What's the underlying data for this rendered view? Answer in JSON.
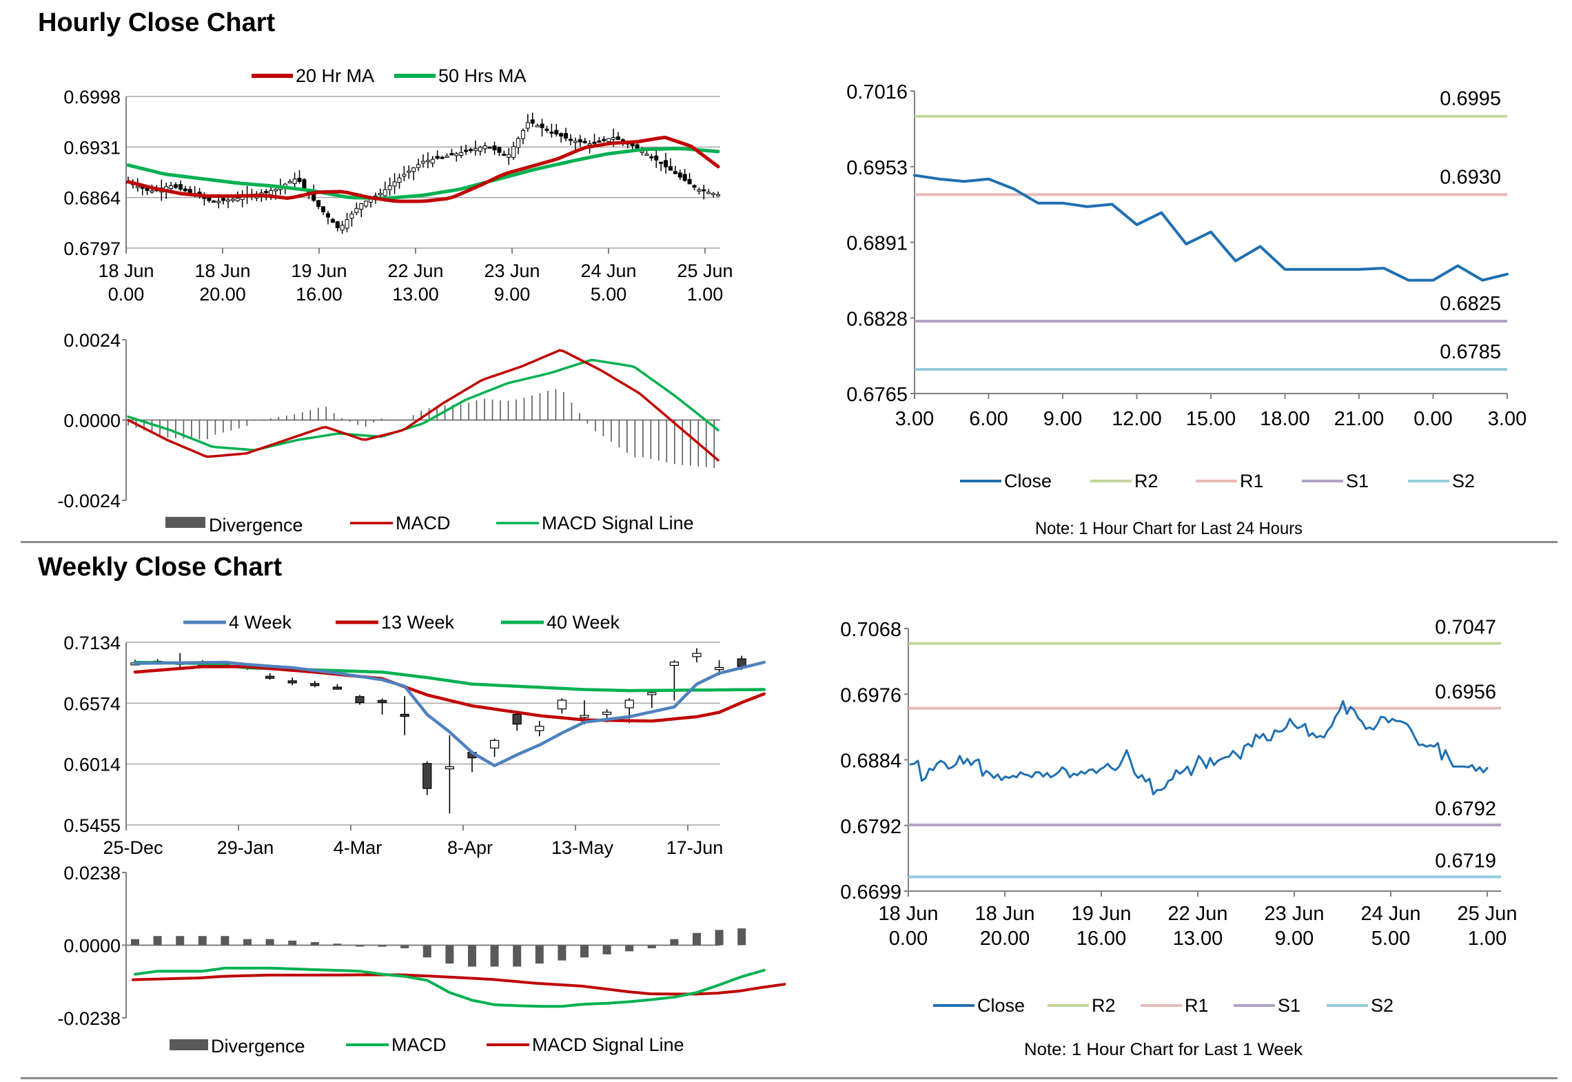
{
  "sections": {
    "hourly_title": "Hourly Close Chart",
    "weekly_title": "Weekly Close Chart"
  },
  "colors": {
    "ma20": "#c00000",
    "ma50": "#00b050",
    "ma4": "#4f81bd",
    "ma13": "#c00000",
    "ma40": "#00b050",
    "close": "#1f6fb2",
    "r2": "#c3d69b",
    "r1": "#e6b9b8",
    "s1": "#b3a2c7",
    "s2": "#93cddd",
    "divergence": "#595959",
    "grid": "#a6a6a6"
  },
  "chart_data": [
    {
      "id": "hourly_candles",
      "type": "candlestick",
      "legend": [
        "20 Hr MA",
        "50 Hrs MA"
      ],
      "y_ticks": [
        "0.6998",
        "0.6931",
        "0.6864",
        "0.6797"
      ],
      "ylim": [
        0.6797,
        0.6998
      ],
      "x_ticks": [
        [
          "18 Jun",
          "0.00"
        ],
        [
          "18 Jun",
          "20.00"
        ],
        [
          "19 Jun",
          "16.00"
        ],
        [
          "22 Jun",
          "13.00"
        ],
        [
          "23 Jun",
          "9.00"
        ],
        [
          "24 Jun",
          "5.00"
        ],
        [
          "25 Jun",
          "1.00"
        ]
      ],
      "close_anchors": [
        0.6885,
        0.6872,
        0.688,
        0.687,
        0.6858,
        0.6862,
        0.6868,
        0.6875,
        0.689,
        0.6853,
        0.6822,
        0.6855,
        0.687,
        0.6893,
        0.6912,
        0.6918,
        0.6925,
        0.6933,
        0.6918,
        0.6965,
        0.6952,
        0.694,
        0.6935,
        0.6944,
        0.6932,
        0.6915,
        0.6895,
        0.6875,
        0.6868
      ],
      "ma20_anchors": [
        0.6885,
        0.6876,
        0.6869,
        0.6866,
        0.6866,
        0.6867,
        0.6863,
        0.6871,
        0.6872,
        0.6864,
        0.6859,
        0.6859,
        0.6863,
        0.6878,
        0.6895,
        0.6905,
        0.6915,
        0.693,
        0.6936,
        0.6938,
        0.6944,
        0.6932,
        0.6905
      ],
      "ma50_anchors": [
        0.6907,
        0.6895,
        0.6889,
        0.6883,
        0.6879,
        0.6873,
        0.6864,
        0.6863,
        0.6867,
        0.6875,
        0.6888,
        0.6901,
        0.6912,
        0.6922,
        0.6928,
        0.6929,
        0.6925
      ],
      "macd": {
        "legend": [
          "Divergence",
          "MACD",
          "MACD Signal Line"
        ],
        "y_ticks": [
          "0.0024",
          "0.0000",
          "-0.0024"
        ],
        "ylim": [
          -0.0024,
          0.0024
        ],
        "macd_anchors": [
          0.0,
          -0.0006,
          -0.0011,
          -0.001,
          -0.0006,
          -0.0002,
          -0.0006,
          -0.0003,
          0.0005,
          0.0012,
          0.0016,
          0.0021,
          0.0015,
          0.0008,
          -0.0002,
          -0.0012
        ],
        "signal_anchors": [
          0.0001,
          -0.0003,
          -0.0008,
          -0.0009,
          -0.0006,
          -0.0004,
          -0.0005,
          -0.0001,
          0.0006,
          0.0011,
          0.0014,
          0.0018,
          0.0016,
          0.0007,
          -0.0003
        ]
      }
    },
    {
      "id": "hourly_levels",
      "type": "line",
      "y_ticks": [
        "0.7016",
        "0.6953",
        "0.6891",
        "0.6828",
        "0.6765"
      ],
      "ylim": [
        0.6765,
        0.7016
      ],
      "x_ticks": [
        "3.00",
        "6.00",
        "9.00",
        "12.00",
        "15.00",
        "18.00",
        "21.00",
        "0.00",
        "3.00"
      ],
      "close": [
        0.6946,
        0.6943,
        0.6941,
        0.6943,
        0.6935,
        0.6923,
        0.6923,
        0.692,
        0.6922,
        0.6905,
        0.6915,
        0.6889,
        0.6899,
        0.6875,
        0.6887,
        0.6868,
        0.6868,
        0.6868,
        0.6868,
        0.6869,
        0.6859,
        0.6859,
        0.6871,
        0.6859,
        0.6864
      ],
      "levels": {
        "R2": 0.6995,
        "R1": 0.693,
        "S1": 0.6825,
        "S2": 0.6785
      },
      "level_labels": {
        "R2": "0.6995",
        "R1": "0.6930",
        "S1": "0.6825",
        "S2": "0.6785"
      },
      "legend": [
        "Close",
        "R2",
        "R1",
        "S1",
        "S2"
      ],
      "note": "Note: 1 Hour Chart for Last 24 Hours"
    },
    {
      "id": "weekly_candles",
      "type": "candlestick",
      "legend": [
        "4 Week",
        "13 Week",
        "40 Week"
      ],
      "y_ticks": [
        "0.7134",
        "0.6574",
        "0.6014",
        "0.5455"
      ],
      "ylim": [
        0.5455,
        0.7134
      ],
      "x_ticks": [
        "25-Dec",
        "29-Jan",
        "4-Mar",
        "8-Apr",
        "13-May",
        "17-Jun"
      ],
      "candles": [
        [
          0.6945,
          0.6945,
          0.6975,
          0.6925
        ],
        [
          0.696,
          0.6942,
          0.698,
          0.693
        ],
        [
          0.695,
          0.695,
          0.7035,
          0.69
        ],
        [
          0.694,
          0.694,
          0.697,
          0.692
        ],
        [
          0.6932,
          0.6918,
          0.695,
          0.69
        ],
        [
          0.6918,
          0.6908,
          0.694,
          0.688
        ],
        [
          0.6822,
          0.6808,
          0.685,
          0.679
        ],
        [
          0.678,
          0.677,
          0.681,
          0.674
        ],
        [
          0.6755,
          0.6738,
          0.678,
          0.672
        ],
        [
          0.6722,
          0.6712,
          0.675,
          0.67
        ],
        [
          0.6635,
          0.658,
          0.665,
          0.656
        ],
        [
          0.66,
          0.659,
          0.6618,
          0.647
        ],
        [
          0.6472,
          0.6462,
          0.664,
          0.628
        ],
        [
          0.602,
          0.579,
          0.604,
          0.573
        ],
        [
          0.599,
          0.599,
          0.628,
          0.556
        ],
        [
          0.6122,
          0.6072,
          0.614,
          0.594
        ],
        [
          0.6162,
          0.6232,
          0.625,
          0.608
        ],
        [
          0.6472,
          0.6382,
          0.649,
          0.632
        ],
        [
          0.6322,
          0.6362,
          0.641,
          0.627
        ],
        [
          0.6522,
          0.6602,
          0.662,
          0.648
        ],
        [
          0.6462,
          0.6462,
          0.66,
          0.638
        ],
        [
          0.6472,
          0.6492,
          0.652,
          0.64
        ],
        [
          0.6532,
          0.6602,
          0.662,
          0.639
        ],
        [
          0.6672,
          0.6672,
          0.669,
          0.653
        ],
        [
          0.6922,
          0.6952,
          0.697,
          0.66
        ],
        [
          0.7002,
          0.7032,
          0.708,
          0.695
        ],
        [
          0.6902,
          0.6902,
          0.697,
          0.683
        ],
        [
          0.6982,
          0.6912,
          0.701,
          0.688
        ]
      ],
      "ma4_anchors": [
        [
          0,
          0.694
        ],
        [
          4,
          0.695
        ],
        [
          5,
          0.693
        ],
        [
          7,
          0.69
        ],
        [
          9,
          0.685
        ],
        [
          11,
          0.679
        ],
        [
          12,
          0.673
        ],
        [
          13,
          0.647
        ],
        [
          14,
          0.631
        ],
        [
          15,
          0.612
        ],
        [
          16,
          0.6
        ],
        [
          17,
          0.61
        ],
        [
          18,
          0.619
        ],
        [
          19,
          0.63
        ],
        [
          20,
          0.64
        ],
        [
          22,
          0.645
        ],
        [
          24,
          0.654
        ],
        [
          25,
          0.675
        ],
        [
          26,
          0.685
        ],
        [
          28,
          0.695
        ]
      ],
      "ma13_anchors": [
        [
          0,
          0.686
        ],
        [
          3,
          0.691
        ],
        [
          5,
          0.691
        ],
        [
          8,
          0.686
        ],
        [
          11,
          0.68
        ],
        [
          13,
          0.665
        ],
        [
          15,
          0.655
        ],
        [
          18,
          0.646
        ],
        [
          20,
          0.642
        ],
        [
          23,
          0.641
        ],
        [
          25,
          0.645
        ],
        [
          26,
          0.649
        ],
        [
          27,
          0.658
        ],
        [
          28,
          0.666
        ]
      ],
      "ma40_anchors": [
        [
          0,
          0.695
        ],
        [
          3,
          0.694
        ],
        [
          5,
          0.69
        ],
        [
          8,
          0.688
        ],
        [
          11,
          0.686
        ],
        [
          13,
          0.681
        ],
        [
          15,
          0.675
        ],
        [
          18,
          0.672
        ],
        [
          20,
          0.67
        ],
        [
          22,
          0.669
        ],
        [
          28,
          0.67
        ]
      ],
      "macd": {
        "legend": [
          "Divergence",
          "MACD",
          "MACD Signal Line"
        ],
        "y_ticks": [
          "0.0238",
          "0.0000",
          "-0.0238"
        ],
        "ylim": [
          -0.0238,
          0.0238
        ],
        "divergence": [
          0.002,
          0.003,
          0.003,
          0.003,
          0.003,
          0.002,
          0.002,
          0.0015,
          0.001,
          0.0005,
          0.0,
          -0.0005,
          -0.001,
          -0.004,
          -0.006,
          -0.007,
          -0.007,
          -0.007,
          -0.006,
          -0.005,
          -0.004,
          -0.003,
          -0.002,
          -0.001,
          0.002,
          0.004,
          0.005,
          0.0055
        ],
        "macd_anchors": [
          [
            0,
            -0.0095
          ],
          [
            1,
            -0.0085
          ],
          [
            3,
            -0.0085
          ],
          [
            4,
            -0.0075
          ],
          [
            6,
            -0.0075
          ],
          [
            8,
            -0.008
          ],
          [
            10,
            -0.0085
          ],
          [
            11,
            -0.0095
          ],
          [
            12,
            -0.0102
          ],
          [
            13,
            -0.0115
          ],
          [
            14,
            -0.0155
          ],
          [
            15,
            -0.018
          ],
          [
            16,
            -0.0195
          ],
          [
            17,
            -0.0198
          ],
          [
            18,
            -0.02
          ],
          [
            19,
            -0.02
          ],
          [
            20,
            -0.0193
          ],
          [
            21,
            -0.019
          ],
          [
            22,
            -0.0185
          ],
          [
            23,
            -0.0178
          ],
          [
            24,
            -0.017
          ],
          [
            25,
            -0.0155
          ],
          [
            26,
            -0.013
          ],
          [
            27,
            -0.0103
          ],
          [
            28,
            -0.0082
          ]
        ],
        "signal_anchors": [
          [
            0,
            -0.0113
          ],
          [
            3,
            -0.0107
          ],
          [
            4,
            -0.0102
          ],
          [
            6,
            -0.0098
          ],
          [
            8,
            -0.0098
          ],
          [
            10,
            -0.0097
          ],
          [
            12,
            -0.0097
          ],
          [
            14,
            -0.0104
          ],
          [
            16,
            -0.0112
          ],
          [
            18,
            -0.0125
          ],
          [
            20,
            -0.0134
          ],
          [
            22,
            -0.0152
          ],
          [
            23,
            -0.0159
          ],
          [
            24,
            -0.016
          ],
          [
            25,
            -0.016
          ],
          [
            26,
            -0.0157
          ],
          [
            27,
            -0.015
          ],
          [
            28,
            -0.0138
          ],
          [
            29,
            -0.0128
          ]
        ]
      }
    },
    {
      "id": "weekly_levels",
      "type": "line",
      "y_ticks": [
        "0.7068",
        "0.6976",
        "0.6884",
        "0.6792",
        "0.6699"
      ],
      "ylim": [
        0.6699,
        0.7068
      ],
      "x_ticks": [
        [
          "18 Jun",
          "0.00"
        ],
        [
          "18 Jun",
          "20.00"
        ],
        [
          "19 Jun",
          "16.00"
        ],
        [
          "22 Jun",
          "13.00"
        ],
        [
          "23 Jun",
          "9.00"
        ],
        [
          "24 Jun",
          "5.00"
        ],
        [
          "25 Jun",
          "1.00"
        ]
      ],
      "close": [
        0.6877,
        0.6878,
        0.6882,
        0.6854,
        0.6858,
        0.6871,
        0.6869,
        0.6878,
        0.6882,
        0.6879,
        0.6871,
        0.6873,
        0.6877,
        0.6889,
        0.6878,
        0.6885,
        0.6876,
        0.6882,
        0.6884,
        0.6861,
        0.6868,
        0.6864,
        0.6858,
        0.6863,
        0.6855,
        0.686,
        0.6858,
        0.6861,
        0.6859,
        0.6866,
        0.6863,
        0.6862,
        0.6859,
        0.6866,
        0.6866,
        0.686,
        0.6865,
        0.6859,
        0.6862,
        0.6866,
        0.6873,
        0.6869,
        0.6859,
        0.6864,
        0.6862,
        0.6867,
        0.6864,
        0.6869,
        0.687,
        0.6865,
        0.687,
        0.6873,
        0.6878,
        0.6872,
        0.6869,
        0.6874,
        0.6885,
        0.6897,
        0.6882,
        0.6865,
        0.6858,
        0.6862,
        0.6853,
        0.6857,
        0.6835,
        0.6841,
        0.6841,
        0.6844,
        0.6854,
        0.6856,
        0.6869,
        0.6864,
        0.6868,
        0.6874,
        0.6862,
        0.6875,
        0.6889,
        0.6882,
        0.6872,
        0.6886,
        0.6876,
        0.6882,
        0.6885,
        0.6887,
        0.6888,
        0.6896,
        0.6891,
        0.6885,
        0.6903,
        0.6906,
        0.6902,
        0.6919,
        0.6914,
        0.692,
        0.6911,
        0.6911,
        0.6925,
        0.6923,
        0.6924,
        0.6929,
        0.6941,
        0.6933,
        0.6928,
        0.693,
        0.6934,
        0.6917,
        0.6921,
        0.6915,
        0.6917,
        0.6915,
        0.6925,
        0.6931,
        0.6944,
        0.6952,
        0.6966,
        0.6948,
        0.6958,
        0.6953,
        0.6942,
        0.6937,
        0.6927,
        0.6929,
        0.6926,
        0.6933,
        0.6944,
        0.6943,
        0.6936,
        0.6941,
        0.6938,
        0.6938,
        0.6936,
        0.6933,
        0.6925,
        0.6914,
        0.6904,
        0.6905,
        0.6902,
        0.6904,
        0.6902,
        0.6907,
        0.6884,
        0.6897,
        0.6885,
        0.6874,
        0.6874,
        0.6874,
        0.6874,
        0.6873,
        0.6876,
        0.6868,
        0.6873,
        0.6866,
        0.6872
      ],
      "levels": {
        "R2": 0.7047,
        "R1": 0.6956,
        "S1": 0.6792,
        "S2": 0.6719
      },
      "level_labels": {
        "R2": "0.7047",
        "R1": "0.6956",
        "S1": "0.6792",
        "S2": "0.6719"
      },
      "legend": [
        "Close",
        "R2",
        "R1",
        "S1",
        "S2"
      ],
      "note": "Note: 1 Hour Chart for Last 1 Week"
    }
  ]
}
